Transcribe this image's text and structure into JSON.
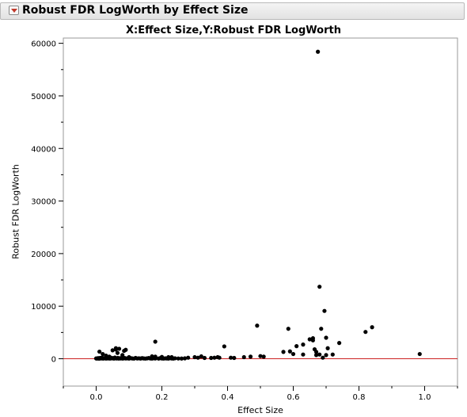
{
  "panel": {
    "title": "Robust FDR LogWorth by Effect Size",
    "toggle_icon": "disclosure-triangle-icon"
  },
  "chart_data": {
    "type": "scatter",
    "title": "X:Effect Size,Y:Robust FDR LogWorth",
    "xlabel": "Effect Size",
    "ylabel": "Robust FDR LogWorth",
    "xlim": [
      -0.1,
      1.1
    ],
    "ylim": [
      -5200,
      61000
    ],
    "xticks": [
      "0.0",
      "0.2",
      "0.4",
      "0.6",
      "0.8",
      "1.0"
    ],
    "yticks": [
      "0",
      "10000",
      "20000",
      "30000",
      "40000",
      "50000",
      "60000"
    ],
    "reference_line": {
      "y": 0,
      "color": "#cc2222"
    },
    "grid": false,
    "points": [
      [
        0.0,
        60
      ],
      [
        0.003,
        30
      ],
      [
        0.006,
        110
      ],
      [
        0.009,
        20
      ],
      [
        0.012,
        160
      ],
      [
        0.015,
        50
      ],
      [
        0.018,
        220
      ],
      [
        0.021,
        30
      ],
      [
        0.024,
        80
      ],
      [
        0.027,
        140
      ],
      [
        0.03,
        40
      ],
      [
        0.033,
        260
      ],
      [
        0.036,
        60
      ],
      [
        0.039,
        100
      ],
      [
        0.042,
        30
      ],
      [
        0.045,
        190
      ],
      [
        0.048,
        70
      ],
      [
        0.051,
        120
      ],
      [
        0.054,
        40
      ],
      [
        0.057,
        230
      ],
      [
        0.06,
        80
      ],
      [
        0.063,
        50
      ],
      [
        0.066,
        150
      ],
      [
        0.069,
        30
      ],
      [
        0.072,
        100
      ],
      [
        0.075,
        60
      ],
      [
        0.078,
        170
      ],
      [
        0.081,
        40
      ],
      [
        0.084,
        90
      ],
      [
        0.087,
        130
      ],
      [
        0.09,
        50
      ],
      [
        0.095,
        80
      ],
      [
        0.1,
        40
      ],
      [
        0.105,
        120
      ],
      [
        0.11,
        60
      ],
      [
        0.115,
        30
      ],
      [
        0.12,
        150
      ],
      [
        0.125,
        50
      ],
      [
        0.13,
        90
      ],
      [
        0.135,
        40
      ],
      [
        0.14,
        110
      ],
      [
        0.145,
        60
      ],
      [
        0.15,
        30
      ],
      [
        0.155,
        80
      ],
      [
        0.16,
        130
      ],
      [
        0.165,
        50
      ],
      [
        0.17,
        30
      ],
      [
        0.175,
        90
      ],
      [
        0.18,
        60
      ],
      [
        0.19,
        40
      ],
      [
        0.195,
        120
      ],
      [
        0.2,
        50
      ],
      [
        0.205,
        30
      ],
      [
        0.21,
        80
      ],
      [
        0.215,
        60
      ],
      [
        0.22,
        40
      ],
      [
        0.225,
        110
      ],
      [
        0.23,
        60
      ],
      [
        0.235,
        40
      ],
      [
        0.24,
        90
      ],
      [
        0.25,
        50
      ],
      [
        0.26,
        40
      ],
      [
        0.27,
        80
      ],
      [
        0.01,
        1350
      ],
      [
        0.02,
        900
      ],
      [
        0.03,
        600
      ],
      [
        0.04,
        400
      ],
      [
        0.05,
        1600
      ],
      [
        0.06,
        1750
      ],
      [
        0.065,
        1100
      ],
      [
        0.07,
        1900
      ],
      [
        0.08,
        700
      ],
      [
        0.085,
        1500
      ],
      [
        0.09,
        1700
      ],
      [
        0.06,
        2000
      ],
      [
        0.1,
        300
      ],
      [
        0.18,
        3250
      ],
      [
        0.17,
        450
      ],
      [
        0.18,
        400
      ],
      [
        0.2,
        350
      ],
      [
        0.22,
        300
      ],
      [
        0.23,
        300
      ],
      [
        0.28,
        200
      ],
      [
        0.3,
        300
      ],
      [
        0.31,
        200
      ],
      [
        0.32,
        450
      ],
      [
        0.33,
        150
      ],
      [
        0.35,
        150
      ],
      [
        0.36,
        200
      ],
      [
        0.37,
        300
      ],
      [
        0.375,
        200
      ],
      [
        0.39,
        2350
      ],
      [
        0.41,
        200
      ],
      [
        0.42,
        150
      ],
      [
        0.45,
        300
      ],
      [
        0.47,
        400
      ],
      [
        0.49,
        6300
      ],
      [
        0.5,
        500
      ],
      [
        0.51,
        400
      ],
      [
        0.57,
        1300
      ],
      [
        0.585,
        5700
      ],
      [
        0.59,
        1400
      ],
      [
        0.6,
        900
      ],
      [
        0.61,
        2400
      ],
      [
        0.63,
        2700
      ],
      [
        0.63,
        800
      ],
      [
        0.65,
        3700
      ],
      [
        0.66,
        3500
      ],
      [
        0.66,
        3900
      ],
      [
        0.665,
        1800
      ],
      [
        0.67,
        1300
      ],
      [
        0.67,
        700
      ],
      [
        0.675,
        58400
      ],
      [
        0.68,
        13700
      ],
      [
        0.68,
        800
      ],
      [
        0.685,
        5700
      ],
      [
        0.69,
        200
      ],
      [
        0.695,
        9100
      ],
      [
        0.7,
        700
      ],
      [
        0.7,
        4000
      ],
      [
        0.705,
        2000
      ],
      [
        0.72,
        800
      ],
      [
        0.74,
        3000
      ],
      [
        0.82,
        5100
      ],
      [
        0.84,
        6000
      ],
      [
        0.985,
        900
      ]
    ]
  }
}
